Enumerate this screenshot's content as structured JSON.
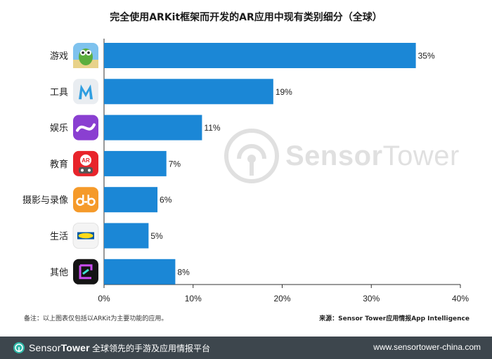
{
  "chart_data": {
    "type": "bar",
    "orientation": "horizontal",
    "title": "完全使用ARKit框架而开发的AR应用中现有类别细分（全球）",
    "categories": [
      "游戏",
      "工具",
      "娱乐",
      "教育",
      "摄影与录像",
      "生活",
      "其他"
    ],
    "values": [
      35,
      19,
      11,
      7,
      6,
      5,
      8
    ],
    "data_labels": [
      "35%",
      "19%",
      "11%",
      "7%",
      "6%",
      "5%",
      "8%"
    ],
    "xlim": [
      0,
      40
    ],
    "x_ticks": [
      "0%",
      "10%",
      "20%",
      "30%",
      "40%"
    ],
    "bar_color": "#1b87d6",
    "grid": false,
    "category_icons": [
      "dinosaur-game-icon",
      "m-ruler-app-icon",
      "purple-ribbon-app-icon",
      "ar-robot-app-icon",
      "dub-app-icon",
      "ikea-app-icon",
      "neon-frame-app-icon"
    ]
  },
  "footnote": "备注：以上图表仅包括以ARKit为主要功能的应用。",
  "source": "来源：Sensor Tower应用情报App Intelligence",
  "watermark": {
    "brand_a": "Sensor",
    "brand_b": "Tower"
  },
  "footer": {
    "brand_a": "Sensor",
    "brand_b": "Tower",
    "tagline": "全球领先的手游及应用情报平台",
    "url": "www.sensortower-china.com"
  },
  "colors": {
    "footer_bg": "#3d464d",
    "accent": "#1b87d6"
  }
}
